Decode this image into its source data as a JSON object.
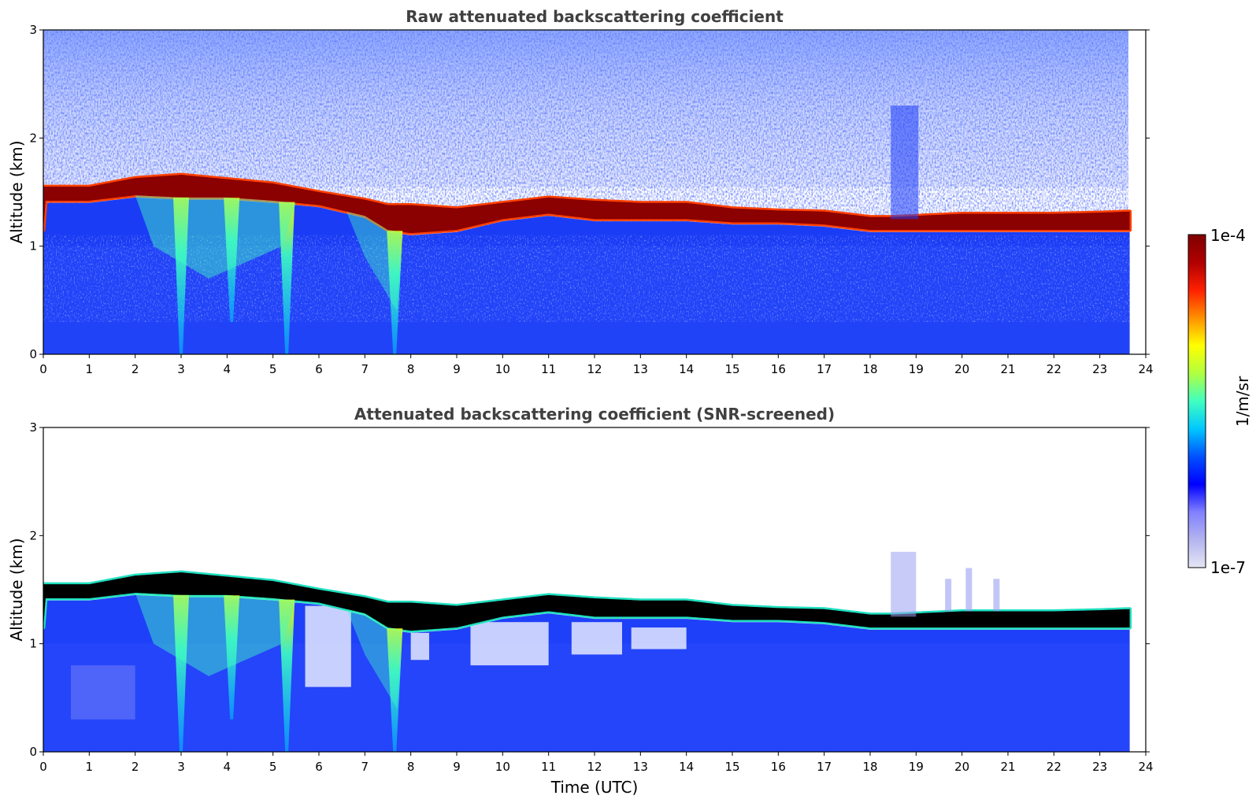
{
  "chart_data": [
    {
      "type": "heatmap",
      "title": "Raw attenuated backscattering coefficient",
      "xlabel": "",
      "ylabel": "Altitude (km)",
      "xlim": [
        0,
        24
      ],
      "ylim": [
        0,
        3
      ],
      "x_ticks": [
        "0",
        "1",
        "2",
        "3",
        "4",
        "5",
        "6",
        "7",
        "8",
        "9",
        "10",
        "11",
        "12",
        "13",
        "14",
        "15",
        "16",
        "17",
        "18",
        "19",
        "20",
        "21",
        "22",
        "23",
        "24"
      ],
      "y_ticks": [
        "0",
        "1",
        "2",
        "3"
      ],
      "data_end_time": 23.65,
      "colormap": "jet-like",
      "color_scale": "log",
      "cloud_top_km": [
        [
          0,
          1.55
        ],
        [
          1,
          1.55
        ],
        [
          2,
          1.63
        ],
        [
          3,
          1.66
        ],
        [
          4,
          1.62
        ],
        [
          5,
          1.58
        ],
        [
          6,
          1.5
        ],
        [
          7,
          1.43
        ],
        [
          7.5,
          1.38
        ],
        [
          8,
          1.38
        ],
        [
          9,
          1.35
        ],
        [
          10,
          1.4
        ],
        [
          11,
          1.45
        ],
        [
          12,
          1.42
        ],
        [
          13,
          1.4
        ],
        [
          14,
          1.4
        ],
        [
          15,
          1.35
        ],
        [
          16,
          1.33
        ],
        [
          17,
          1.32
        ],
        [
          18,
          1.27
        ],
        [
          18.45,
          1.27
        ],
        [
          19,
          1.28
        ],
        [
          20,
          1.3
        ],
        [
          21,
          1.3
        ],
        [
          22,
          1.3
        ],
        [
          23,
          1.31
        ],
        [
          23.65,
          1.32
        ]
      ],
      "cloud_base_km": [
        [
          0,
          1.42
        ],
        [
          1,
          1.42
        ],
        [
          2,
          1.47
        ],
        [
          3,
          1.45
        ],
        [
          4,
          1.45
        ],
        [
          5,
          1.42
        ],
        [
          6,
          1.38
        ],
        [
          7,
          1.28
        ],
        [
          7.5,
          1.15
        ],
        [
          8,
          1.12
        ],
        [
          9,
          1.15
        ],
        [
          10,
          1.25
        ],
        [
          11,
          1.3
        ],
        [
          12,
          1.25
        ],
        [
          13,
          1.25
        ],
        [
          14,
          1.25
        ],
        [
          15,
          1.22
        ],
        [
          16,
          1.22
        ],
        [
          17,
          1.2
        ],
        [
          18,
          1.15
        ],
        [
          18.45,
          1.15
        ],
        [
          19,
          1.15
        ],
        [
          20,
          1.15
        ],
        [
          21,
          1.15
        ],
        [
          22,
          1.15
        ],
        [
          23,
          1.15
        ],
        [
          23.65,
          1.15
        ]
      ],
      "precipitation_streaks": [
        {
          "time": 3.0,
          "bottom_km": 0.0
        },
        {
          "time": 4.1,
          "bottom_km": 0.3
        },
        {
          "time": 5.3,
          "bottom_km": 0.0
        },
        {
          "time": 7.65,
          "bottom_km": 0.0
        }
      ]
    },
    {
      "type": "heatmap",
      "title": "Attenuated backscattering coefficient (SNR-screened)",
      "xlabel": "Time (UTC)",
      "ylabel": "Altitude (km)",
      "xlim": [
        0,
        24
      ],
      "ylim": [
        0,
        3
      ],
      "x_ticks": [
        "0",
        "1",
        "2",
        "3",
        "4",
        "5",
        "6",
        "7",
        "8",
        "9",
        "10",
        "11",
        "12",
        "13",
        "14",
        "15",
        "16",
        "17",
        "18",
        "19",
        "20",
        "21",
        "22",
        "23",
        "24"
      ],
      "y_ticks": [
        "0",
        "1",
        "2",
        "3"
      ],
      "data_end_time": 23.65,
      "colormap": "jet-like",
      "color_scale": "log",
      "saturated_core_color": "#000000",
      "screened_color": "#ffffff"
    }
  ],
  "colorbar": {
    "label": "1/m/sr",
    "max_label": "1e-4",
    "min_label": "1e-7",
    "stops": [
      "#e6e6f5",
      "#b4b4f0",
      "#8080ff",
      "#0000ff",
      "#0050ff",
      "#00c8ff",
      "#40ffc0",
      "#b0ff40",
      "#ffff00",
      "#ff9000",
      "#ff2000",
      "#b00000",
      "#800000"
    ]
  },
  "colors": {
    "background_clear": "#ffffff",
    "noise_blue": "#1e2ef0",
    "boundary_layer": "#1a3cf5",
    "cloud": "#8b0000",
    "title_gray": "#404040"
  }
}
